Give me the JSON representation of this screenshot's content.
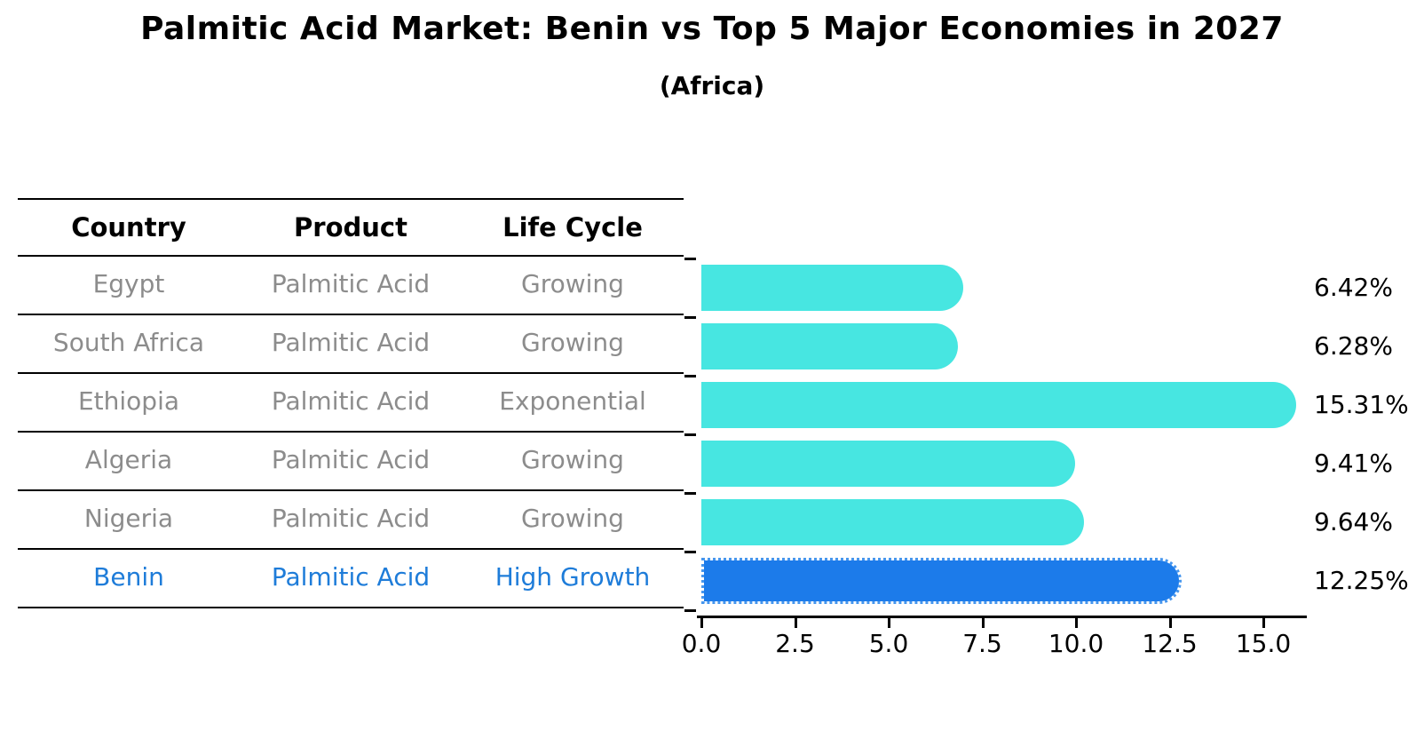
{
  "title": "Palmitic Acid Market: Benin vs Top 5 Major Economies in 2027",
  "subtitle": "(Africa)",
  "table": {
    "headers": [
      "Country",
      "Product",
      "Life Cycle"
    ],
    "rows": [
      {
        "country": "Egypt",
        "product": "Palmitic Acid",
        "life_cycle": "Growing",
        "highlight": false
      },
      {
        "country": "South Africa",
        "product": "Palmitic Acid",
        "life_cycle": "Growing",
        "highlight": false
      },
      {
        "country": "Ethiopia",
        "product": "Palmitic Acid",
        "life_cycle": "Exponential",
        "highlight": false
      },
      {
        "country": "Algeria",
        "product": "Palmitic Acid",
        "life_cycle": "Growing",
        "highlight": false
      },
      {
        "country": "Nigeria",
        "product": "Palmitic Acid",
        "life_cycle": "Growing",
        "highlight": false
      },
      {
        "country": "Benin",
        "product": "Palmitic Acid",
        "life_cycle": "High Growth",
        "highlight": true
      }
    ]
  },
  "chart_data": {
    "type": "bar",
    "orientation": "horizontal",
    "categories": [
      "Egypt",
      "South Africa",
      "Ethiopia",
      "Algeria",
      "Nigeria",
      "Benin"
    ],
    "values": [
      6.42,
      6.28,
      15.31,
      9.41,
      9.64,
      12.25
    ],
    "value_labels": [
      "6.42%",
      "6.28%",
      "15.31%",
      "9.41%",
      "9.64%",
      "12.25%"
    ],
    "title": "Palmitic Acid Market: Benin vs Top 5 Major Economies in 2027",
    "subtitle": "(Africa)",
    "xlabel": "",
    "ylabel": "",
    "xlim": [
      0,
      16.1
    ],
    "xticks": [
      0.0,
      2.5,
      5.0,
      7.5,
      10.0,
      12.5,
      15.0
    ],
    "xtick_labels": [
      "0.0",
      "2.5",
      "5.0",
      "7.5",
      "10.0",
      "12.5",
      "15.0"
    ],
    "grid": false,
    "legend": false,
    "bar_color": "#47e6e1",
    "highlight_color": "#1c7bea",
    "highlight_index": 5
  },
  "colors": {
    "bar_cyan": "#47e6e1",
    "bar_blue": "#1c7bea",
    "highlight_text": "#1e7cd9",
    "muted_text": "#8c8c8c",
    "axis": "#000000"
  }
}
